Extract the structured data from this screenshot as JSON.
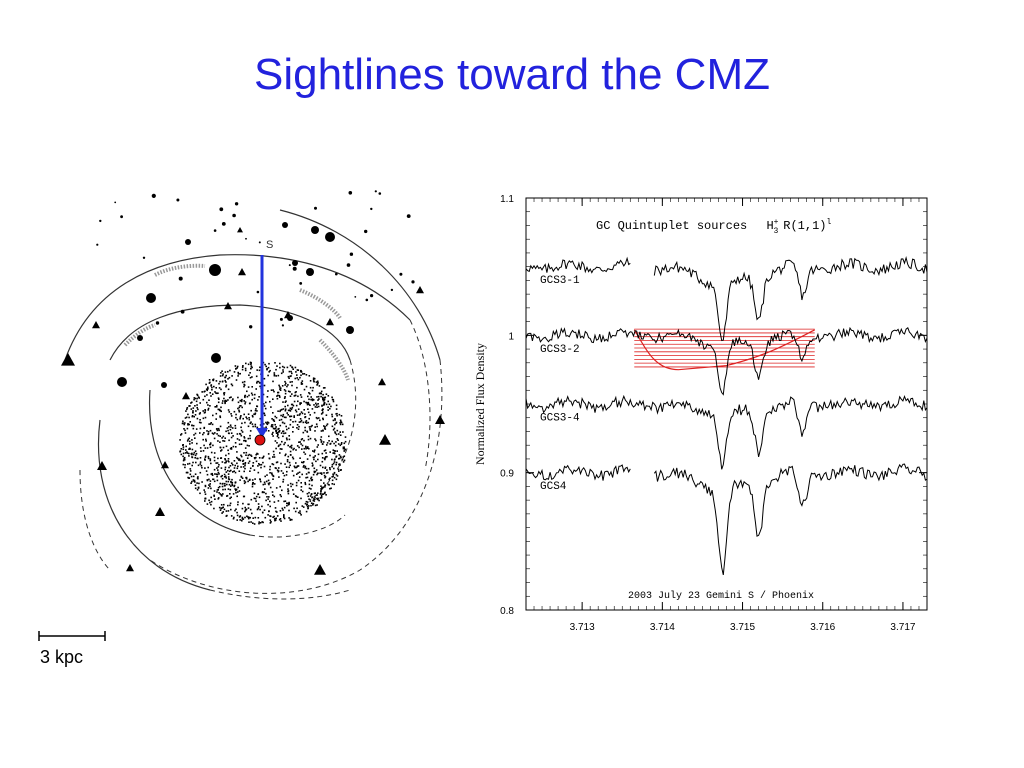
{
  "slide": {
    "title": "Sightlines toward the CMZ"
  },
  "galaxy_map": {
    "sightline_label": "S",
    "scale_bar_label": "3 kpc",
    "sightline_color": "#2233dd",
    "target_color": "#dd1111"
  },
  "chart_data": {
    "type": "line",
    "title": "GC Quintuplet sources",
    "title_transition_prefix": "H",
    "title_transition_sup": "+",
    "title_transition_sub": "3",
    "title_transition_suffix": "R(1,1)",
    "title_transition_mark": "l",
    "xlabel": "",
    "ylabel": "Normalized Flux Density",
    "xlim": [
      3.7123,
      3.7173
    ],
    "ylim": [
      0.8,
      1.1
    ],
    "x_ticks": [
      "3.713",
      "3.714",
      "3.715",
      "3.716",
      "3.717"
    ],
    "y_ticks": [
      "1.1",
      "1",
      "0.9",
      "0.8"
    ],
    "annotation": "2003 July 23  Gemini S / Phoenix",
    "highlight_color": "#dd2222",
    "series": [
      {
        "name": "GCS3-1",
        "offset": 1.05,
        "segments": [
          [
            3.7123,
            3.7136
          ],
          [
            3.7139,
            3.7173
          ]
        ],
        "absorption": [
          [
            3.71475,
            0.042
          ],
          [
            3.7152,
            0.032
          ],
          [
            3.71575,
            0.022
          ]
        ],
        "noise": 0.004
      },
      {
        "name": "GCS3-2",
        "offset": 1.0,
        "segments": [
          [
            3.7123,
            3.7173
          ]
        ],
        "absorption": [
          [
            3.71475,
            0.034
          ],
          [
            3.7152,
            0.027
          ],
          [
            3.71575,
            0.018
          ]
        ],
        "noise": 0.0035
      },
      {
        "name": "GCS3-4",
        "offset": 0.95,
        "segments": [
          [
            3.7123,
            3.7173
          ]
        ],
        "absorption": [
          [
            3.71475,
            0.038
          ],
          [
            3.7152,
            0.03
          ],
          [
            3.71575,
            0.022
          ]
        ],
        "noise": 0.004
      },
      {
        "name": "GCS4",
        "offset": 0.9,
        "segments": [
          [
            3.7123,
            3.7136
          ],
          [
            3.7139,
            3.7173
          ]
        ],
        "absorption": [
          [
            3.71475,
            0.062
          ],
          [
            3.7152,
            0.04
          ],
          [
            3.71575,
            0.025
          ]
        ],
        "noise": 0.004
      }
    ]
  }
}
